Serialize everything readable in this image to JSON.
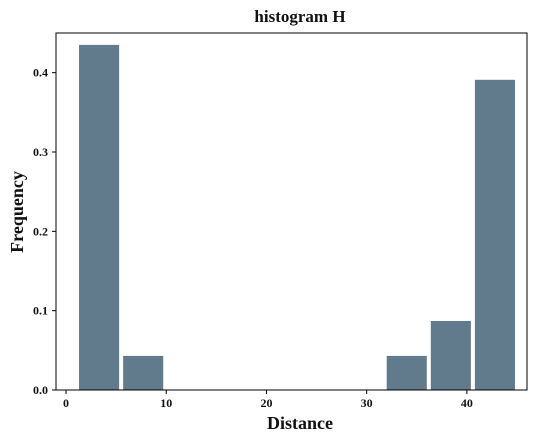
{
  "chart_data": {
    "type": "bar",
    "title": "histogram H",
    "xlabel": "Distance",
    "ylabel": "Frequency",
    "xlim": [
      -1,
      46
    ],
    "ylim": [
      0,
      0.45
    ],
    "xticks": [
      0,
      10,
      20,
      30,
      40
    ],
    "yticks": [
      0.0,
      0.1,
      0.2,
      0.3,
      0.4
    ],
    "ytick_labels": [
      "0.0",
      "0.1",
      "0.2",
      "0.3",
      "0.4"
    ],
    "bins": [
      {
        "start": 1.3,
        "end": 5.3,
        "value": 0.435
      },
      {
        "start": 5.7,
        "end": 9.7,
        "value": 0.043
      },
      {
        "start": 32.0,
        "end": 36.0,
        "value": 0.043
      },
      {
        "start": 36.4,
        "end": 40.4,
        "value": 0.087
      },
      {
        "start": 40.8,
        "end": 44.8,
        "value": 0.391
      }
    ],
    "bar_color": "#617a8c",
    "grid": false,
    "legend": "none"
  }
}
